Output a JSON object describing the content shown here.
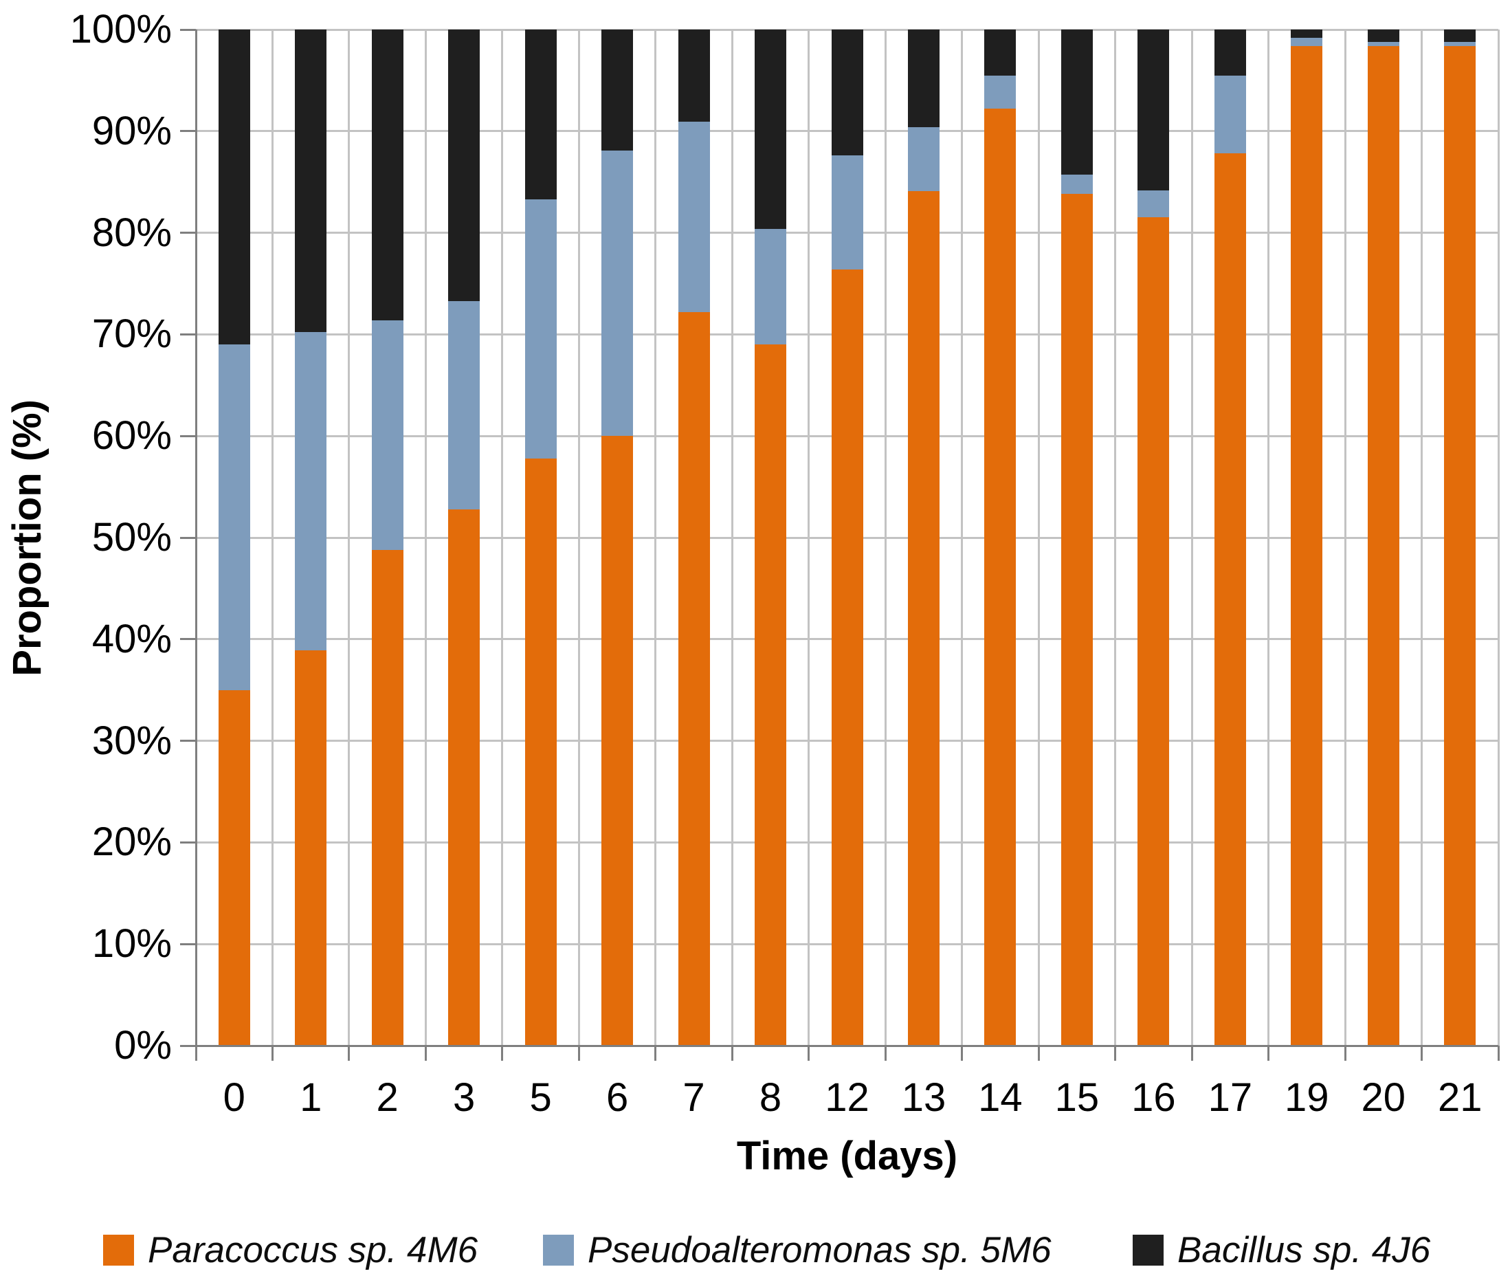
{
  "chart_data": {
    "type": "bar",
    "stacked": true,
    "orientation": "vertical",
    "xlabel": "Time (days)",
    "ylabel": "Proportion (%)",
    "categories": [
      "0",
      "1",
      "2",
      "3",
      "5",
      "6",
      "7",
      "8",
      "12",
      "13",
      "14",
      "15",
      "16",
      "17",
      "19",
      "20",
      "21"
    ],
    "series": [
      {
        "name": "Paracoccus sp. 4M6",
        "color": "#E36C0A",
        "values": [
          35.0,
          38.9,
          48.8,
          52.8,
          57.8,
          60.0,
          72.2,
          69.0,
          76.4,
          84.1,
          92.2,
          83.8,
          81.5,
          87.8,
          98.4,
          98.4,
          98.4
        ]
      },
      {
        "name": "Pseudoalteromonas sp. 5M6",
        "color": "#7E9CBC",
        "values": [
          34.0,
          31.3,
          22.6,
          20.5,
          25.5,
          28.1,
          18.7,
          11.4,
          11.2,
          6.3,
          3.3,
          1.9,
          2.7,
          7.7,
          0.8,
          0.4,
          0.4
        ]
      },
      {
        "name": "Bacillus sp. 4J6",
        "color": "#1F1F1F",
        "values": [
          31.0,
          29.8,
          28.6,
          26.7,
          16.7,
          11.9,
          9.1,
          19.6,
          12.4,
          9.6,
          4.5,
          14.3,
          15.8,
          4.5,
          0.8,
          1.2,
          1.2
        ]
      }
    ],
    "y_ticks": [
      "0%",
      "10%",
      "20%",
      "30%",
      "40%",
      "50%",
      "60%",
      "70%",
      "80%",
      "90%",
      "100%"
    ],
    "ylim": [
      0,
      100
    ],
    "grid": "horizontal and vertical major gridlines",
    "legend_position": "bottom"
  },
  "colors": {
    "background": "#FFFFFF",
    "gridline": "#C3C3C3",
    "axis": "#7F7F7F",
    "text": "#000000"
  }
}
